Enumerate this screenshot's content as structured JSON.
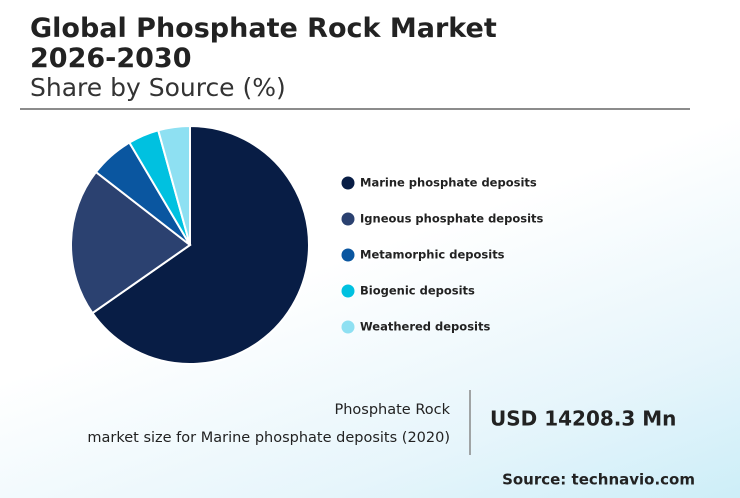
{
  "chart_data": {
    "type": "pie",
    "title": "Global Phosphate Rock Market 2026-2030",
    "subtitle": "Share by Source (%)",
    "categories": [
      "Marine phosphate deposits",
      "Igneous phosphate deposits",
      "Metamorphic deposits",
      "Biogenic deposits",
      "Weathered deposits"
    ],
    "values": [
      65.3,
      20.2,
      6.0,
      4.2,
      4.3
    ],
    "colors": [
      "#081d45",
      "#2b4170",
      "#0a56a0",
      "#00c1e0",
      "#8ee0f2"
    ],
    "highlight": {
      "label_lines": [
        "Phosphate Rock",
        "market size for Marine phosphate deposits (2020)"
      ],
      "value": "USD 14208.3 Mn"
    },
    "source": "Source: technavio.com"
  }
}
